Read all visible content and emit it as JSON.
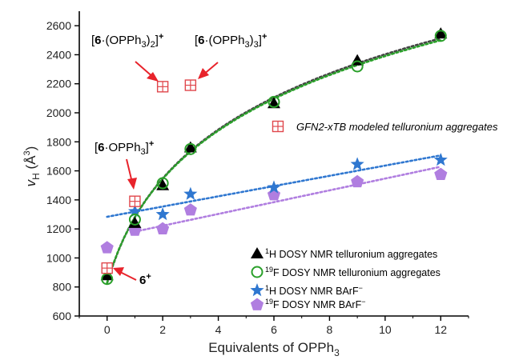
{
  "chart_data": {
    "type": "scatter",
    "xlabel": "Equivalents of OPPh",
    "xlabel_sub": "3",
    "ylabel_main": "v",
    "ylabel_sub": "H",
    "ylabel_units": " (Å",
    "ylabel_units_sup": "3",
    "ylabel_close": ")",
    "xlim": [
      -1,
      13
    ],
    "ylim": [
      600,
      2700
    ],
    "xticks": [
      0,
      2,
      4,
      6,
      8,
      10,
      12
    ],
    "yticks": [
      600,
      800,
      1000,
      1200,
      1400,
      1600,
      1800,
      2000,
      2200,
      2400,
      2600
    ],
    "grid": false,
    "legend_position": "bottom-right",
    "series": [
      {
        "name_sup": "1",
        "name": "H DOSY NMR telluronium aggregates",
        "marker": "triangle",
        "color": "#000000",
        "x": [
          0,
          1,
          2,
          3,
          6,
          9,
          12
        ],
        "y": [
          880,
          1240,
          1500,
          1760,
          2065,
          2360,
          2545
        ]
      },
      {
        "name_sup": "19",
        "name": "F DOSY NMR telluronium aggregates",
        "marker": "circle-open",
        "color": "#2aa02a",
        "x": [
          0,
          1,
          2,
          3,
          6,
          9,
          12
        ],
        "y": [
          855,
          1265,
          1515,
          1750,
          2075,
          2320,
          2530
        ]
      },
      {
        "name_sup": "1",
        "name": "H DOSY NMR BArF",
        "name_sup2": "−",
        "marker": "star",
        "color": "#2f77d0",
        "x": [
          1,
          2,
          3,
          6,
          9,
          12
        ],
        "y": [
          1320,
          1300,
          1440,
          1485,
          1645,
          1675
        ]
      },
      {
        "name_sup": "19",
        "name": "F DOSY NMR BArF",
        "name_sup2": "−",
        "marker": "pentagon",
        "color": "#b07ee0",
        "x": [
          0,
          1,
          2,
          3,
          6,
          9,
          12
        ],
        "y": [
          1070,
          1190,
          1200,
          1330,
          1435,
          1525,
          1575
        ]
      },
      {
        "name": "GFN2-xTB modeled telluronium aggregates",
        "marker": "square-plus",
        "color": "#e0474c",
        "x": [
          0,
          1,
          2,
          3
        ],
        "y": [
          930,
          1390,
          2180,
          2190
        ]
      }
    ],
    "annotations": [
      {
        "pre": "[",
        "bold": "6",
        "mid": "·(OPPh",
        "sub": "3",
        "post": ")",
        "sub2": "2",
        "close": "]",
        "sup": "+"
      },
      {
        "pre": "[",
        "bold": "6",
        "mid": "·(OPPh",
        "sub": "3",
        "post": ")",
        "sub2": "3",
        "close": "]",
        "sup": "+"
      },
      {
        "pre": "[",
        "bold": "6",
        "mid": "·OPPh",
        "sub": "3",
        "post": "",
        "sub2": "",
        "close": "]",
        "sup": "+"
      },
      {
        "pre": "",
        "bold": "6",
        "mid": "",
        "sub": "",
        "post": "",
        "sub2": "",
        "close": "",
        "sup": "+"
      }
    ]
  }
}
